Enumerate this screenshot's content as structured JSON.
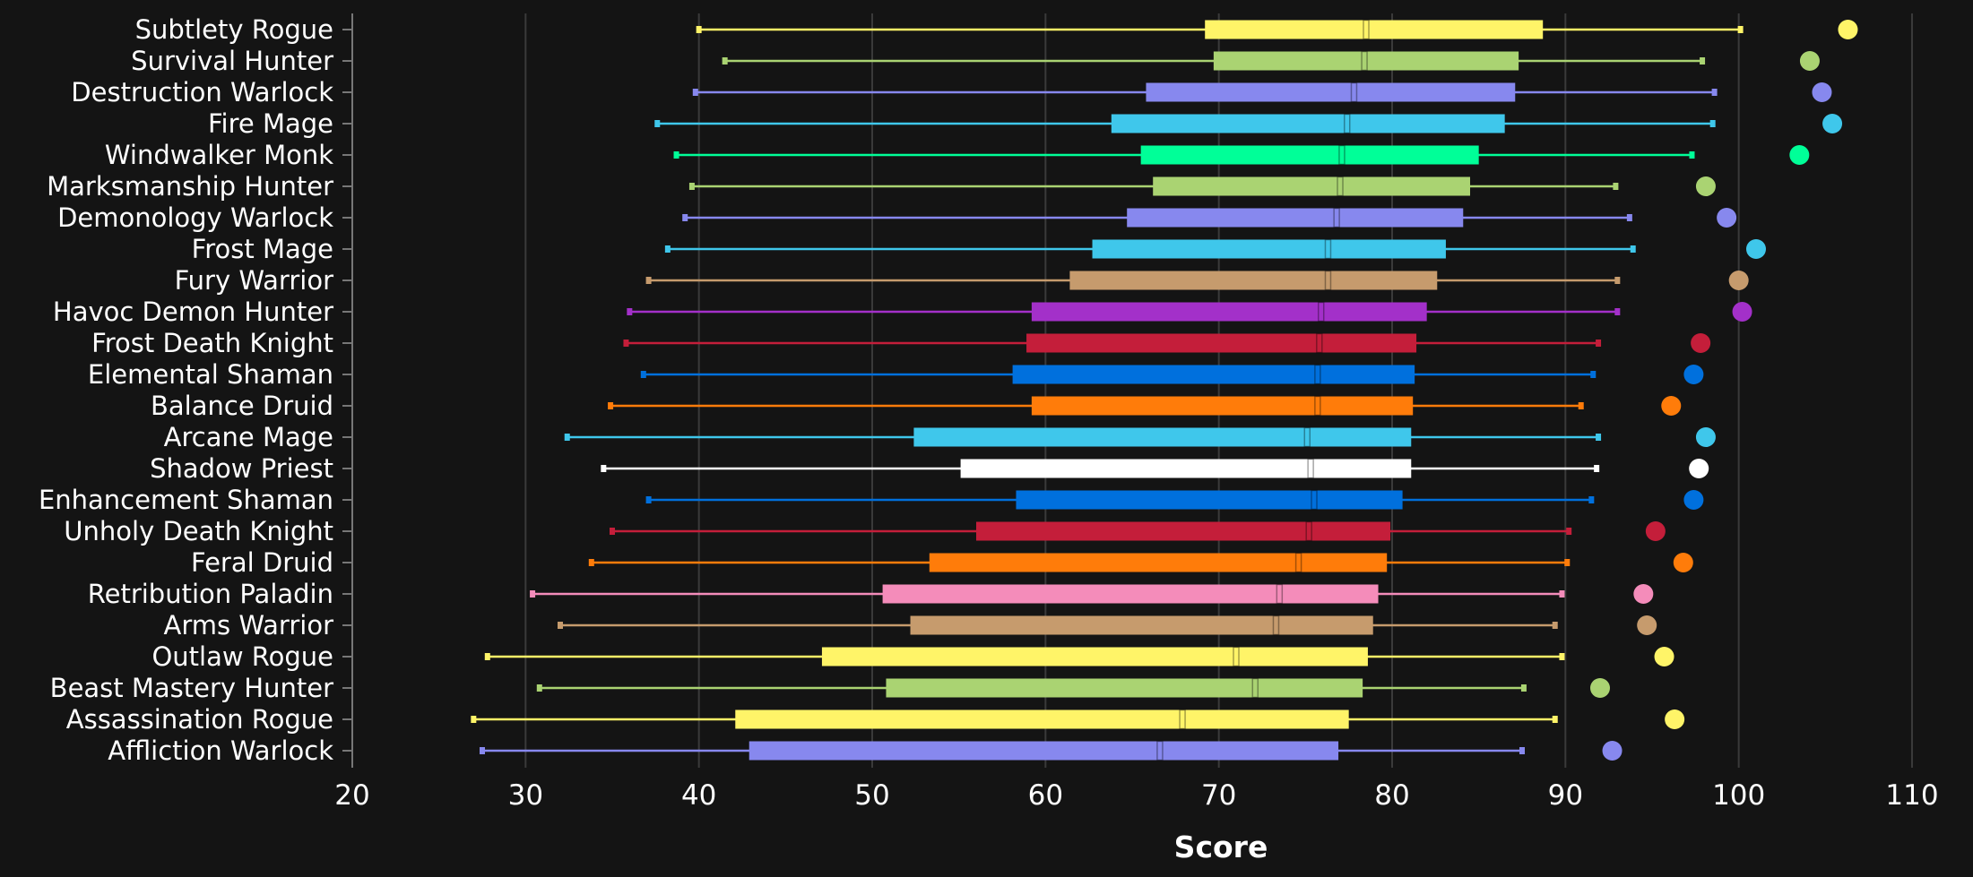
{
  "chart_data": {
    "type": "box",
    "xlabel": "Score",
    "xlim": [
      20,
      110
    ],
    "x_ticks": [
      20,
      30,
      40,
      50,
      60,
      70,
      80,
      90,
      100,
      110
    ],
    "grid": "vertical",
    "colors": {
      "background": "#141414",
      "grid": "#3a3a3a",
      "text": "#ffffff"
    },
    "specs": [
      {
        "name": "Subtlety Rogue",
        "color": "#fff468",
        "min": 40.0,
        "q1": 69.2,
        "median": 78.5,
        "q3": 88.7,
        "max": 100.1,
        "top": 106.3
      },
      {
        "name": "Survival Hunter",
        "color": "#aad372",
        "min": 41.5,
        "q1": 69.7,
        "median": 78.4,
        "q3": 87.3,
        "max": 97.9,
        "top": 104.1
      },
      {
        "name": "Destruction Warlock",
        "color": "#8788ee",
        "min": 39.8,
        "q1": 65.8,
        "median": 77.8,
        "q3": 87.1,
        "max": 98.6,
        "top": 104.8
      },
      {
        "name": "Fire Mage",
        "color": "#3fc7eb",
        "min": 37.6,
        "q1": 63.8,
        "median": 77.4,
        "q3": 86.5,
        "max": 98.5,
        "top": 105.4
      },
      {
        "name": "Windwalker Monk",
        "color": "#00ff98",
        "min": 38.7,
        "q1": 65.5,
        "median": 77.1,
        "q3": 85.0,
        "max": 97.3,
        "top": 103.5
      },
      {
        "name": "Marksmanship Hunter",
        "color": "#aad372",
        "min": 39.6,
        "q1": 66.2,
        "median": 77.0,
        "q3": 84.5,
        "max": 92.9,
        "top": 98.1
      },
      {
        "name": "Demonology Warlock",
        "color": "#8788ee",
        "min": 39.2,
        "q1": 64.7,
        "median": 76.8,
        "q3": 84.1,
        "max": 93.7,
        "top": 99.3
      },
      {
        "name": "Frost Mage",
        "color": "#3fc7eb",
        "min": 38.2,
        "q1": 62.7,
        "median": 76.3,
        "q3": 83.1,
        "max": 93.9,
        "top": 101.0
      },
      {
        "name": "Fury Warrior",
        "color": "#c69b6d",
        "min": 37.1,
        "q1": 61.4,
        "median": 76.3,
        "q3": 82.6,
        "max": 93.0,
        "top": 100.0
      },
      {
        "name": "Havoc Demon Hunter",
        "color": "#a330c9",
        "min": 36.0,
        "q1": 59.2,
        "median": 75.9,
        "q3": 82.0,
        "max": 93.0,
        "top": 100.2
      },
      {
        "name": "Frost Death Knight",
        "color": "#c41e3a",
        "min": 35.8,
        "q1": 58.9,
        "median": 75.8,
        "q3": 81.4,
        "max": 91.9,
        "top": 97.8
      },
      {
        "name": "Elemental Shaman",
        "color": "#0070dd",
        "min": 36.8,
        "q1": 58.1,
        "median": 75.7,
        "q3": 81.3,
        "max": 91.6,
        "top": 97.4
      },
      {
        "name": "Balance Druid",
        "color": "#ff7c0a",
        "min": 34.9,
        "q1": 59.2,
        "median": 75.7,
        "q3": 81.2,
        "max": 90.9,
        "top": 96.1
      },
      {
        "name": "Arcane Mage",
        "color": "#3fc7eb",
        "min": 32.4,
        "q1": 52.4,
        "median": 75.1,
        "q3": 81.1,
        "max": 91.9,
        "top": 98.1
      },
      {
        "name": "Shadow Priest",
        "color": "#ffffff",
        "min": 34.5,
        "q1": 55.1,
        "median": 75.3,
        "q3": 81.1,
        "max": 91.8,
        "top": 97.7
      },
      {
        "name": "Enhancement Shaman",
        "color": "#0070dd",
        "min": 37.1,
        "q1": 58.3,
        "median": 75.5,
        "q3": 80.6,
        "max": 91.5,
        "top": 97.4
      },
      {
        "name": "Unholy Death Knight",
        "color": "#c41e3a",
        "min": 35.0,
        "q1": 56.0,
        "median": 75.2,
        "q3": 79.9,
        "max": 90.2,
        "top": 95.2
      },
      {
        "name": "Feral Druid",
        "color": "#ff7c0a",
        "min": 33.8,
        "q1": 53.3,
        "median": 74.6,
        "q3": 79.7,
        "max": 90.1,
        "top": 96.8
      },
      {
        "name": "Retribution Paladin",
        "color": "#f48cba",
        "min": 30.4,
        "q1": 50.6,
        "median": 73.5,
        "q3": 79.2,
        "max": 89.8,
        "top": 94.5
      },
      {
        "name": "Arms Warrior",
        "color": "#c69b6d",
        "min": 32.0,
        "q1": 52.2,
        "median": 73.3,
        "q3": 78.9,
        "max": 89.4,
        "top": 94.7
      },
      {
        "name": "Outlaw Rogue",
        "color": "#fff468",
        "min": 27.8,
        "q1": 47.1,
        "median": 71.0,
        "q3": 78.6,
        "max": 89.8,
        "top": 95.7
      },
      {
        "name": "Beast Mastery Hunter",
        "color": "#aad372",
        "min": 30.8,
        "q1": 50.8,
        "median": 72.1,
        "q3": 78.3,
        "max": 87.6,
        "top": 92.0
      },
      {
        "name": "Assassination Rogue",
        "color": "#fff468",
        "min": 27.0,
        "q1": 42.1,
        "median": 67.9,
        "q3": 77.5,
        "max": 89.4,
        "top": 96.3
      },
      {
        "name": "Affliction Warlock",
        "color": "#8788ee",
        "min": 27.5,
        "q1": 42.9,
        "median": 66.6,
        "q3": 76.9,
        "max": 87.5,
        "top": 92.7
      }
    ]
  }
}
